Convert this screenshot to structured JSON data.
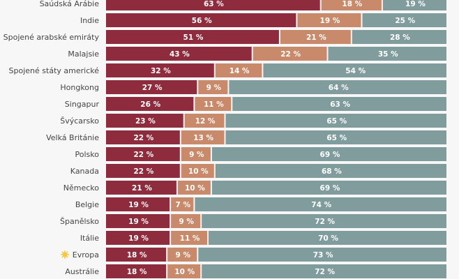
{
  "chart_data": {
    "type": "bar",
    "orientation": "horizontal",
    "stacked": true,
    "xlim": [
      0,
      100
    ],
    "value_suffix": " %",
    "categories": [
      "Saúdská Arábie",
      "Indie",
      "Spojené arabské emiráty",
      "Malajsie",
      "Spojené státy americké",
      "Hongkong",
      "Singapur",
      "Švýcarsko",
      "Velká Británie",
      "Polsko",
      "Kanada",
      "Německo",
      "Belgie",
      "Španělsko",
      "Itálie",
      "Evropa",
      "Austrálie"
    ],
    "highlight_category": "Evropa",
    "highlight_icon": "sun-icon",
    "series": [
      {
        "color": "#8e2b3d",
        "values": [
          63,
          56,
          51,
          43,
          32,
          27,
          26,
          23,
          22,
          22,
          22,
          21,
          19,
          19,
          19,
          18,
          18
        ]
      },
      {
        "color": "#c98a6c",
        "values": [
          18,
          19,
          21,
          22,
          14,
          9,
          11,
          12,
          13,
          9,
          10,
          10,
          7,
          9,
          11,
          9,
          10
        ]
      },
      {
        "color": "#809c9c",
        "values": [
          19,
          25,
          28,
          35,
          54,
          64,
          63,
          65,
          65,
          69,
          68,
          69,
          74,
          72,
          70,
          73,
          72
        ]
      }
    ],
    "grid": false
  }
}
